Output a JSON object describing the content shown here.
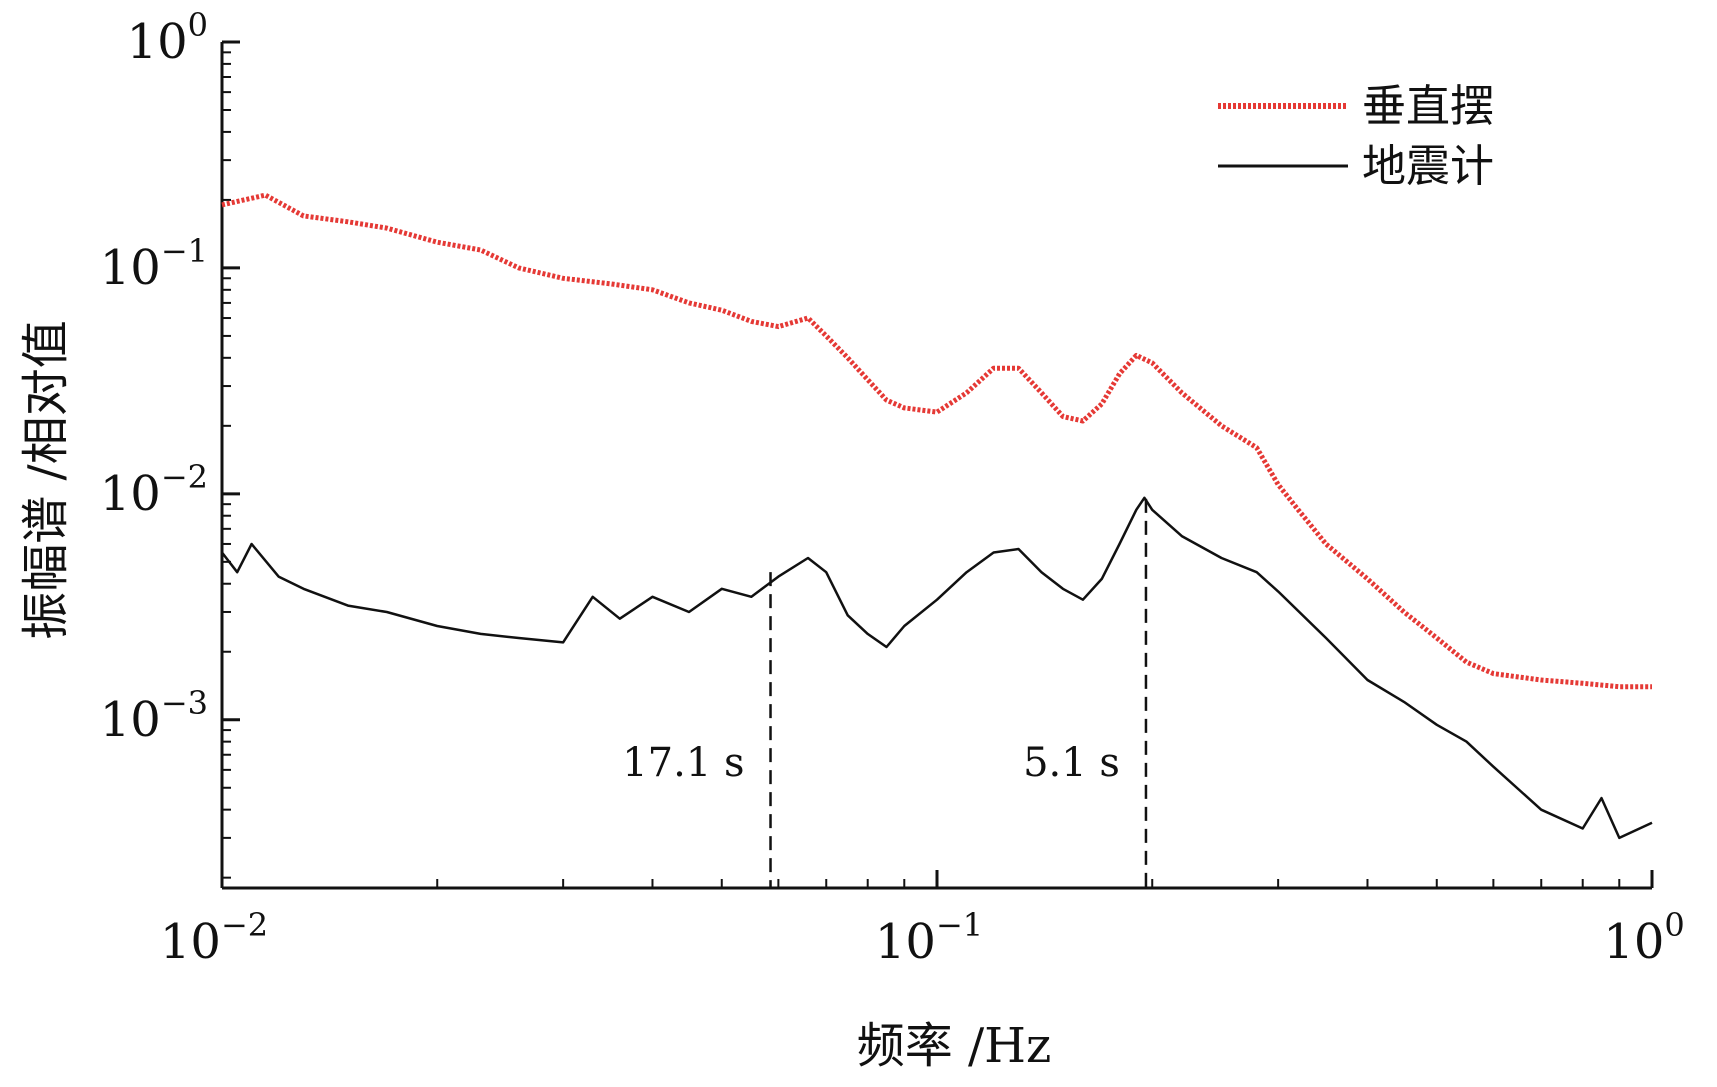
{
  "chart_data": {
    "type": "line",
    "x_scale": "log",
    "y_scale": "log",
    "xlabel": "频率 /Hz",
    "ylabel": "振幅谱 /相对值",
    "xlim": [
      0.01,
      1
    ],
    "ylim": [
      0.00018,
      1
    ],
    "x_ticks": [
      {
        "value": 0.01,
        "base": "10",
        "exp": "−2"
      },
      {
        "value": 0.1,
        "base": "10",
        "exp": "−1"
      },
      {
        "value": 1,
        "base": "10",
        "exp": "0"
      }
    ],
    "y_ticks": [
      {
        "value": 1,
        "base": "10",
        "exp": "0"
      },
      {
        "value": 0.1,
        "base": "10",
        "exp": "−1"
      },
      {
        "value": 0.01,
        "base": "10",
        "exp": "−2"
      },
      {
        "value": 0.001,
        "base": "10",
        "exp": "−3"
      }
    ],
    "grid": false,
    "legend_position": "top-right",
    "series": [
      {
        "name": "垂直摆",
        "color": "#e53935",
        "style": "dotted",
        "x": [
          0.01,
          0.0115,
          0.013,
          0.015,
          0.017,
          0.02,
          0.023,
          0.026,
          0.03,
          0.035,
          0.04,
          0.045,
          0.05,
          0.055,
          0.06,
          0.066,
          0.07,
          0.075,
          0.08,
          0.085,
          0.09,
          0.1,
          0.11,
          0.12,
          0.13,
          0.14,
          0.15,
          0.16,
          0.17,
          0.18,
          0.19,
          0.2,
          0.22,
          0.25,
          0.28,
          0.3,
          0.32,
          0.35,
          0.4,
          0.45,
          0.5,
          0.55,
          0.6,
          0.7,
          0.8,
          0.9,
          1.0
        ],
        "y": [
          0.19,
          0.21,
          0.17,
          0.16,
          0.15,
          0.13,
          0.12,
          0.1,
          0.09,
          0.085,
          0.08,
          0.07,
          0.065,
          0.058,
          0.055,
          0.06,
          0.05,
          0.04,
          0.032,
          0.026,
          0.024,
          0.023,
          0.028,
          0.036,
          0.036,
          0.028,
          0.022,
          0.021,
          0.025,
          0.034,
          0.041,
          0.038,
          0.028,
          0.02,
          0.016,
          0.011,
          0.0085,
          0.006,
          0.0042,
          0.003,
          0.0023,
          0.0018,
          0.0016,
          0.0015,
          0.00145,
          0.0014,
          0.0014
        ]
      },
      {
        "name": "地震计",
        "color": "#111111",
        "style": "solid",
        "x": [
          0.01,
          0.0105,
          0.011,
          0.012,
          0.013,
          0.015,
          0.017,
          0.02,
          0.023,
          0.026,
          0.03,
          0.033,
          0.036,
          0.04,
          0.045,
          0.05,
          0.055,
          0.06,
          0.066,
          0.07,
          0.075,
          0.08,
          0.085,
          0.09,
          0.1,
          0.11,
          0.12,
          0.13,
          0.14,
          0.15,
          0.16,
          0.17,
          0.18,
          0.19,
          0.195,
          0.2,
          0.22,
          0.25,
          0.28,
          0.3,
          0.35,
          0.4,
          0.45,
          0.5,
          0.55,
          0.6,
          0.7,
          0.8,
          0.85,
          0.9,
          1.0
        ],
        "y": [
          0.0055,
          0.0045,
          0.006,
          0.0043,
          0.0038,
          0.0032,
          0.003,
          0.0026,
          0.0024,
          0.0023,
          0.0022,
          0.0035,
          0.0028,
          0.0035,
          0.003,
          0.0038,
          0.0035,
          0.0043,
          0.0052,
          0.0045,
          0.0029,
          0.0024,
          0.0021,
          0.0026,
          0.0034,
          0.0045,
          0.0055,
          0.0057,
          0.0045,
          0.0038,
          0.0034,
          0.0042,
          0.006,
          0.0085,
          0.0096,
          0.0085,
          0.0065,
          0.0052,
          0.0045,
          0.0037,
          0.0023,
          0.0015,
          0.0012,
          0.00095,
          0.0008,
          0.00062,
          0.0004,
          0.00033,
          0.00045,
          0.0003,
          0.00035
        ]
      }
    ],
    "annotations": [
      {
        "label": "17.1 s",
        "x": 0.0585,
        "y_top": 0.0045
      },
      {
        "label": "5.1 s",
        "x": 0.196,
        "y_top": 0.0095
      }
    ]
  }
}
